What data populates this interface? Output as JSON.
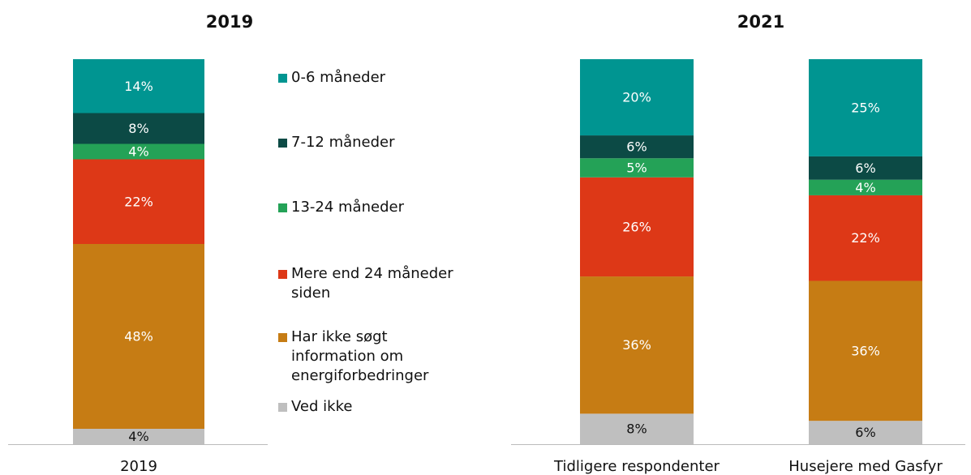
{
  "chart_data": [
    {
      "type": "stacked-bar",
      "title": "2019",
      "categories": [
        "2019"
      ],
      "series": [
        {
          "name": "0-6 måneder",
          "color": "#009591",
          "values": [
            14
          ],
          "value_labels": [
            "14%"
          ]
        },
        {
          "name": "7-12 måneder",
          "color": "#0c4a45",
          "values": [
            8
          ],
          "value_labels": [
            "8%"
          ]
        },
        {
          "name": "13-24 måneder",
          "color": "#24a257",
          "values": [
            4
          ],
          "value_labels": [
            "4%"
          ]
        },
        {
          "name": "Mere end 24 måneder siden",
          "color": "#dd3817",
          "values": [
            22
          ],
          "value_labels": [
            "22%"
          ]
        },
        {
          "name": "Har ikke søgt information om energiforbedringer",
          "color": "#c67c14",
          "values": [
            48
          ],
          "value_labels": [
            "48%"
          ]
        },
        {
          "name": "Ved ikke",
          "color": "#bfbfbf",
          "values": [
            4
          ],
          "value_labels": [
            "4%"
          ]
        }
      ]
    },
    {
      "type": "stacked-bar",
      "title": "2021",
      "categories": [
        "Tidligere respondenter",
        "Husejere med Gasfyr"
      ],
      "series": [
        {
          "color": "#009591",
          "values": [
            20,
            25
          ],
          "value_labels": [
            "20%",
            "25%"
          ]
        },
        {
          "color": "#0c4a45",
          "values": [
            6,
            6
          ],
          "value_labels": [
            "6%",
            "6%"
          ]
        },
        {
          "color": "#24a257",
          "values": [
            5,
            4
          ],
          "value_labels": [
            "5%",
            "4%"
          ]
        },
        {
          "color": "#dd3817",
          "values": [
            26,
            22
          ],
          "value_labels": [
            "26%",
            "22%"
          ]
        },
        {
          "color": "#c67c14",
          "values": [
            36,
            36
          ],
          "value_labels": [
            "36%",
            "36%"
          ]
        },
        {
          "color": "#bfbfbf",
          "values": [
            8,
            6
          ],
          "value_labels": [
            "8%",
            "6%"
          ]
        }
      ]
    }
  ]
}
